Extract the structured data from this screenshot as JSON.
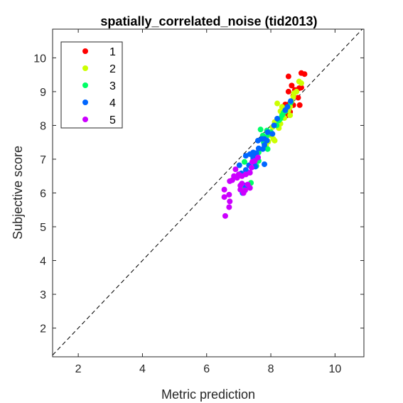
{
  "chart_data": {
    "type": "scatter",
    "title": "spatially_correlated_noise (tid2013)",
    "xlabel": "Metric prediction",
    "ylabel": "Subjective score",
    "xlim": [
      1.2,
      10.9
    ],
    "ylim": [
      1.15,
      10.85
    ],
    "xticks": [
      "2",
      "4",
      "6",
      "8",
      "10"
    ],
    "yticks": [
      "2",
      "3",
      "4",
      "5",
      "6",
      "7",
      "8",
      "9",
      "10"
    ],
    "grid": false,
    "legend_position": "top-left",
    "reference_line": "y = x (dashed)",
    "series": [
      {
        "name": "1",
        "color": "#ff0000",
        "points": [
          [
            8.55,
            9.45
          ],
          [
            8.95,
            9.55
          ],
          [
            9.05,
            9.52
          ],
          [
            8.65,
            9.18
          ],
          [
            8.55,
            9.0
          ],
          [
            8.75,
            9.05
          ],
          [
            8.88,
            9.1
          ],
          [
            8.95,
            9.12
          ],
          [
            8.7,
            8.88
          ],
          [
            8.85,
            8.82
          ],
          [
            8.55,
            8.62
          ],
          [
            8.7,
            8.6
          ],
          [
            8.9,
            8.6
          ],
          [
            8.45,
            8.62
          ],
          [
            8.35,
            8.38
          ],
          [
            8.6,
            8.4
          ],
          [
            8.5,
            8.3
          ]
        ]
      },
      {
        "name": "2",
        "color": "#ccff00",
        "points": [
          [
            8.88,
            9.3
          ],
          [
            8.95,
            9.25
          ],
          [
            8.8,
            9.0
          ],
          [
            8.72,
            8.95
          ],
          [
            8.7,
            8.85
          ],
          [
            8.65,
            8.72
          ],
          [
            8.6,
            8.55
          ],
          [
            8.3,
            8.42
          ],
          [
            8.2,
            8.65
          ],
          [
            8.35,
            8.55
          ],
          [
            8.48,
            8.5
          ],
          [
            8.55,
            8.45
          ],
          [
            8.6,
            8.3
          ],
          [
            8.42,
            8.22
          ],
          [
            8.3,
            8.05
          ],
          [
            8.12,
            8.1
          ],
          [
            8.05,
            7.95
          ],
          [
            8.25,
            7.92
          ],
          [
            8.0,
            7.7
          ],
          [
            8.08,
            7.6
          ],
          [
            8.12,
            7.55
          ],
          [
            7.92,
            7.52
          ],
          [
            7.85,
            7.4
          ]
        ]
      },
      {
        "name": "3",
        "color": "#00ff66",
        "points": [
          [
            8.62,
            8.68
          ],
          [
            8.45,
            8.42
          ],
          [
            8.4,
            8.38
          ],
          [
            8.35,
            8.3
          ],
          [
            8.3,
            8.2
          ],
          [
            8.25,
            8.15
          ],
          [
            8.18,
            8.0
          ],
          [
            7.88,
            7.85
          ],
          [
            7.68,
            7.88
          ],
          [
            8.0,
            7.8
          ],
          [
            7.95,
            7.75
          ],
          [
            7.75,
            7.7
          ],
          [
            7.85,
            7.65
          ],
          [
            7.82,
            7.55
          ],
          [
            7.78,
            7.5
          ],
          [
            7.9,
            7.3
          ],
          [
            7.62,
            7.2
          ],
          [
            7.55,
            7.1
          ],
          [
            7.45,
            7.0
          ],
          [
            7.62,
            6.95
          ],
          [
            7.55,
            6.8
          ],
          [
            7.18,
            6.92
          ],
          [
            7.28,
            6.6
          ],
          [
            7.38,
            6.3
          ],
          [
            7.2,
            6.18
          ],
          [
            7.08,
            6.1
          ]
        ]
      },
      {
        "name": "4",
        "color": "#0066ff",
        "points": [
          [
            8.62,
            8.72
          ],
          [
            8.52,
            8.55
          ],
          [
            8.45,
            8.45
          ],
          [
            8.2,
            8.2
          ],
          [
            8.1,
            8.0
          ],
          [
            8.05,
            7.75
          ],
          [
            7.9,
            7.8
          ],
          [
            7.8,
            7.6
          ],
          [
            7.72,
            7.6
          ],
          [
            7.88,
            7.55
          ],
          [
            7.6,
            7.55
          ],
          [
            7.8,
            7.42
          ],
          [
            7.62,
            7.32
          ],
          [
            7.75,
            7.3
          ],
          [
            7.45,
            7.2
          ],
          [
            7.35,
            7.15
          ],
          [
            7.22,
            7.1
          ],
          [
            7.55,
            7.18
          ],
          [
            7.45,
            7.05
          ],
          [
            7.48,
            6.9
          ],
          [
            7.6,
            7.05
          ],
          [
            7.52,
            6.78
          ],
          [
            7.32,
            6.82
          ],
          [
            7.8,
            6.85
          ],
          [
            7.02,
            6.82
          ],
          [
            7.22,
            6.68
          ],
          [
            7.08,
            6.58
          ],
          [
            7.2,
            6.22
          ],
          [
            7.12,
            6.0
          ],
          [
            7.0,
            6.55
          ]
        ]
      },
      {
        "name": "5",
        "color": "#cc00ff",
        "points": [
          [
            7.6,
            7.05
          ],
          [
            7.42,
            6.92
          ],
          [
            7.5,
            6.95
          ],
          [
            7.4,
            6.75
          ],
          [
            7.35,
            6.6
          ],
          [
            7.22,
            6.55
          ],
          [
            7.1,
            6.5
          ],
          [
            7.0,
            6.55
          ],
          [
            6.95,
            6.45
          ],
          [
            6.85,
            6.5
          ],
          [
            6.8,
            6.38
          ],
          [
            6.72,
            6.35
          ],
          [
            6.9,
            6.7
          ],
          [
            7.1,
            6.28
          ],
          [
            7.28,
            6.25
          ],
          [
            7.05,
            6.22
          ],
          [
            7.35,
            6.15
          ],
          [
            7.2,
            6.08
          ],
          [
            7.05,
            6.1
          ],
          [
            6.55,
            6.1
          ],
          [
            6.7,
            5.95
          ],
          [
            6.55,
            5.88
          ],
          [
            6.72,
            5.75
          ],
          [
            6.7,
            5.58
          ],
          [
            6.58,
            5.32
          ],
          [
            7.15,
            6.0
          ]
        ]
      }
    ]
  }
}
